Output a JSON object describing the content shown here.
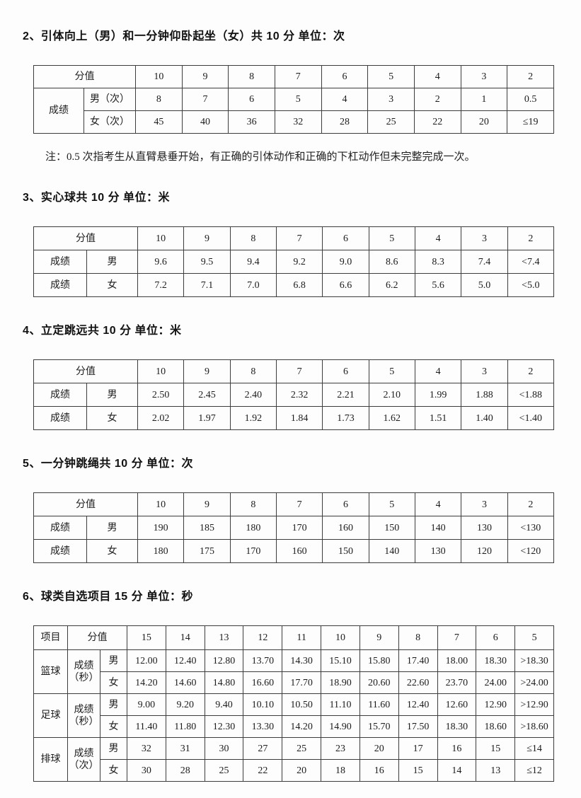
{
  "page": {
    "background": "#fdfdfd",
    "text_color": "#1c1c1c",
    "border_color": "#3c3c3c"
  },
  "sections": [
    {
      "id": "pullup-situp",
      "title": "2、引体向上（男）和一分钟仰卧起坐（女）共 10 分  单位：次",
      "note": "注：0.5 次指考生从直臂悬垂开始，有正确的引体动作和正确的下杠动作但未完整完成一次。",
      "table": {
        "rows": [
          [
            {
              "t": "分值",
              "cs": 2,
              "n": "score-header"
            },
            "10",
            "9",
            "8",
            "7",
            "6",
            "5",
            "4",
            "3",
            "2"
          ],
          [
            {
              "t": "成绩",
              "rs": 2,
              "n": "result-label"
            },
            "男（次）",
            "8",
            "7",
            "6",
            "5",
            "4",
            "3",
            "2",
            "1",
            "0.5"
          ],
          [
            "女（次）",
            "45",
            "40",
            "36",
            "32",
            "28",
            "25",
            "22",
            "20",
            "≤19"
          ]
        ]
      }
    },
    {
      "id": "medicine-ball",
      "title": "3、实心球共 10 分  单位：米",
      "table": {
        "rows": [
          [
            {
              "t": "分值",
              "cs": 2,
              "n": "score-header"
            },
            "10",
            "9",
            "8",
            "7",
            "6",
            "5",
            "4",
            "3",
            "2"
          ],
          [
            "成绩",
            "男",
            "9.6",
            "9.5",
            "9.4",
            "9.2",
            "9.0",
            "8.6",
            "8.3",
            "7.4",
            "<7.4"
          ],
          [
            "成绩",
            "女",
            "7.2",
            "7.1",
            "7.0",
            "6.8",
            "6.6",
            "6.2",
            "5.6",
            "5.0",
            "<5.0"
          ]
        ]
      }
    },
    {
      "id": "standing-long-jump",
      "title": "4、立定跳远共 10 分  单位：米",
      "table": {
        "rows": [
          [
            {
              "t": "分值",
              "cs": 2,
              "n": "score-header"
            },
            "10",
            "9",
            "8",
            "7",
            "6",
            "5",
            "4",
            "3",
            "2"
          ],
          [
            "成绩",
            "男",
            "2.50",
            "2.45",
            "2.40",
            "2.32",
            "2.21",
            "2.10",
            "1.99",
            "1.88",
            "<1.88"
          ],
          [
            "成绩",
            "女",
            "2.02",
            "1.97",
            "1.92",
            "1.84",
            "1.73",
            "1.62",
            "1.51",
            "1.40",
            "<1.40"
          ]
        ]
      }
    },
    {
      "id": "rope-skipping",
      "title": "5、一分钟跳绳共 10 分  单位：次",
      "table": {
        "rows": [
          [
            {
              "t": "分值",
              "cs": 2,
              "n": "score-header"
            },
            "10",
            "9",
            "8",
            "7",
            "6",
            "5",
            "4",
            "3",
            "2"
          ],
          [
            "成绩",
            "男",
            "190",
            "185",
            "180",
            "170",
            "160",
            "150",
            "140",
            "130",
            "<130"
          ],
          [
            "成绩",
            "女",
            "180",
            "175",
            "170",
            "160",
            "150",
            "140",
            "130",
            "120",
            "<120"
          ]
        ]
      }
    },
    {
      "id": "ball-games",
      "title": "6、球类自选项目 15 分  单位：秒",
      "table": {
        "rows": [
          [
            {
              "t": "项目",
              "n": "event-header"
            },
            {
              "t": "分值",
              "cs": 2,
              "n": "score-header"
            },
            "15",
            "14",
            "13",
            "12",
            "11",
            "10",
            "9",
            "8",
            "7",
            "6",
            "5"
          ],
          [
            {
              "t": "篮球",
              "rs": 2,
              "n": "event-basketball"
            },
            {
              "t": "成绩\n（秒）",
              "rs": 2,
              "n": "result-label"
            },
            "男",
            "12.00",
            "12.40",
            "12.80",
            "13.70",
            "14.30",
            "15.10",
            "15.80",
            "17.40",
            "18.00",
            "18.30",
            ">18.30"
          ],
          [
            "女",
            "14.20",
            "14.60",
            "14.80",
            "16.60",
            "17.70",
            "18.90",
            "20.60",
            "22.60",
            "23.70",
            "24.00",
            ">24.00"
          ],
          [
            {
              "t": "足球",
              "rs": 2,
              "n": "event-soccer"
            },
            {
              "t": "成绩\n（秒）",
              "rs": 2,
              "n": "result-label"
            },
            "男",
            "9.00",
            "9.20",
            "9.40",
            "10.10",
            "10.50",
            "11.10",
            "11.60",
            "12.40",
            "12.60",
            "12.90",
            ">12.90"
          ],
          [
            "女",
            "11.40",
            "11.80",
            "12.30",
            "13.30",
            "14.20",
            "14.90",
            "15.70",
            "17.50",
            "18.30",
            "18.60",
            ">18.60"
          ],
          [
            {
              "t": "排球",
              "rs": 2,
              "n": "event-volleyball"
            },
            {
              "t": "成绩\n（次）",
              "rs": 2,
              "n": "result-label"
            },
            "男",
            "32",
            "31",
            "30",
            "27",
            "25",
            "23",
            "20",
            "17",
            "16",
            "15",
            "≤14"
          ],
          [
            "女",
            "30",
            "28",
            "25",
            "22",
            "20",
            "18",
            "16",
            "15",
            "14",
            "13",
            "≤12"
          ]
        ]
      }
    }
  ]
}
